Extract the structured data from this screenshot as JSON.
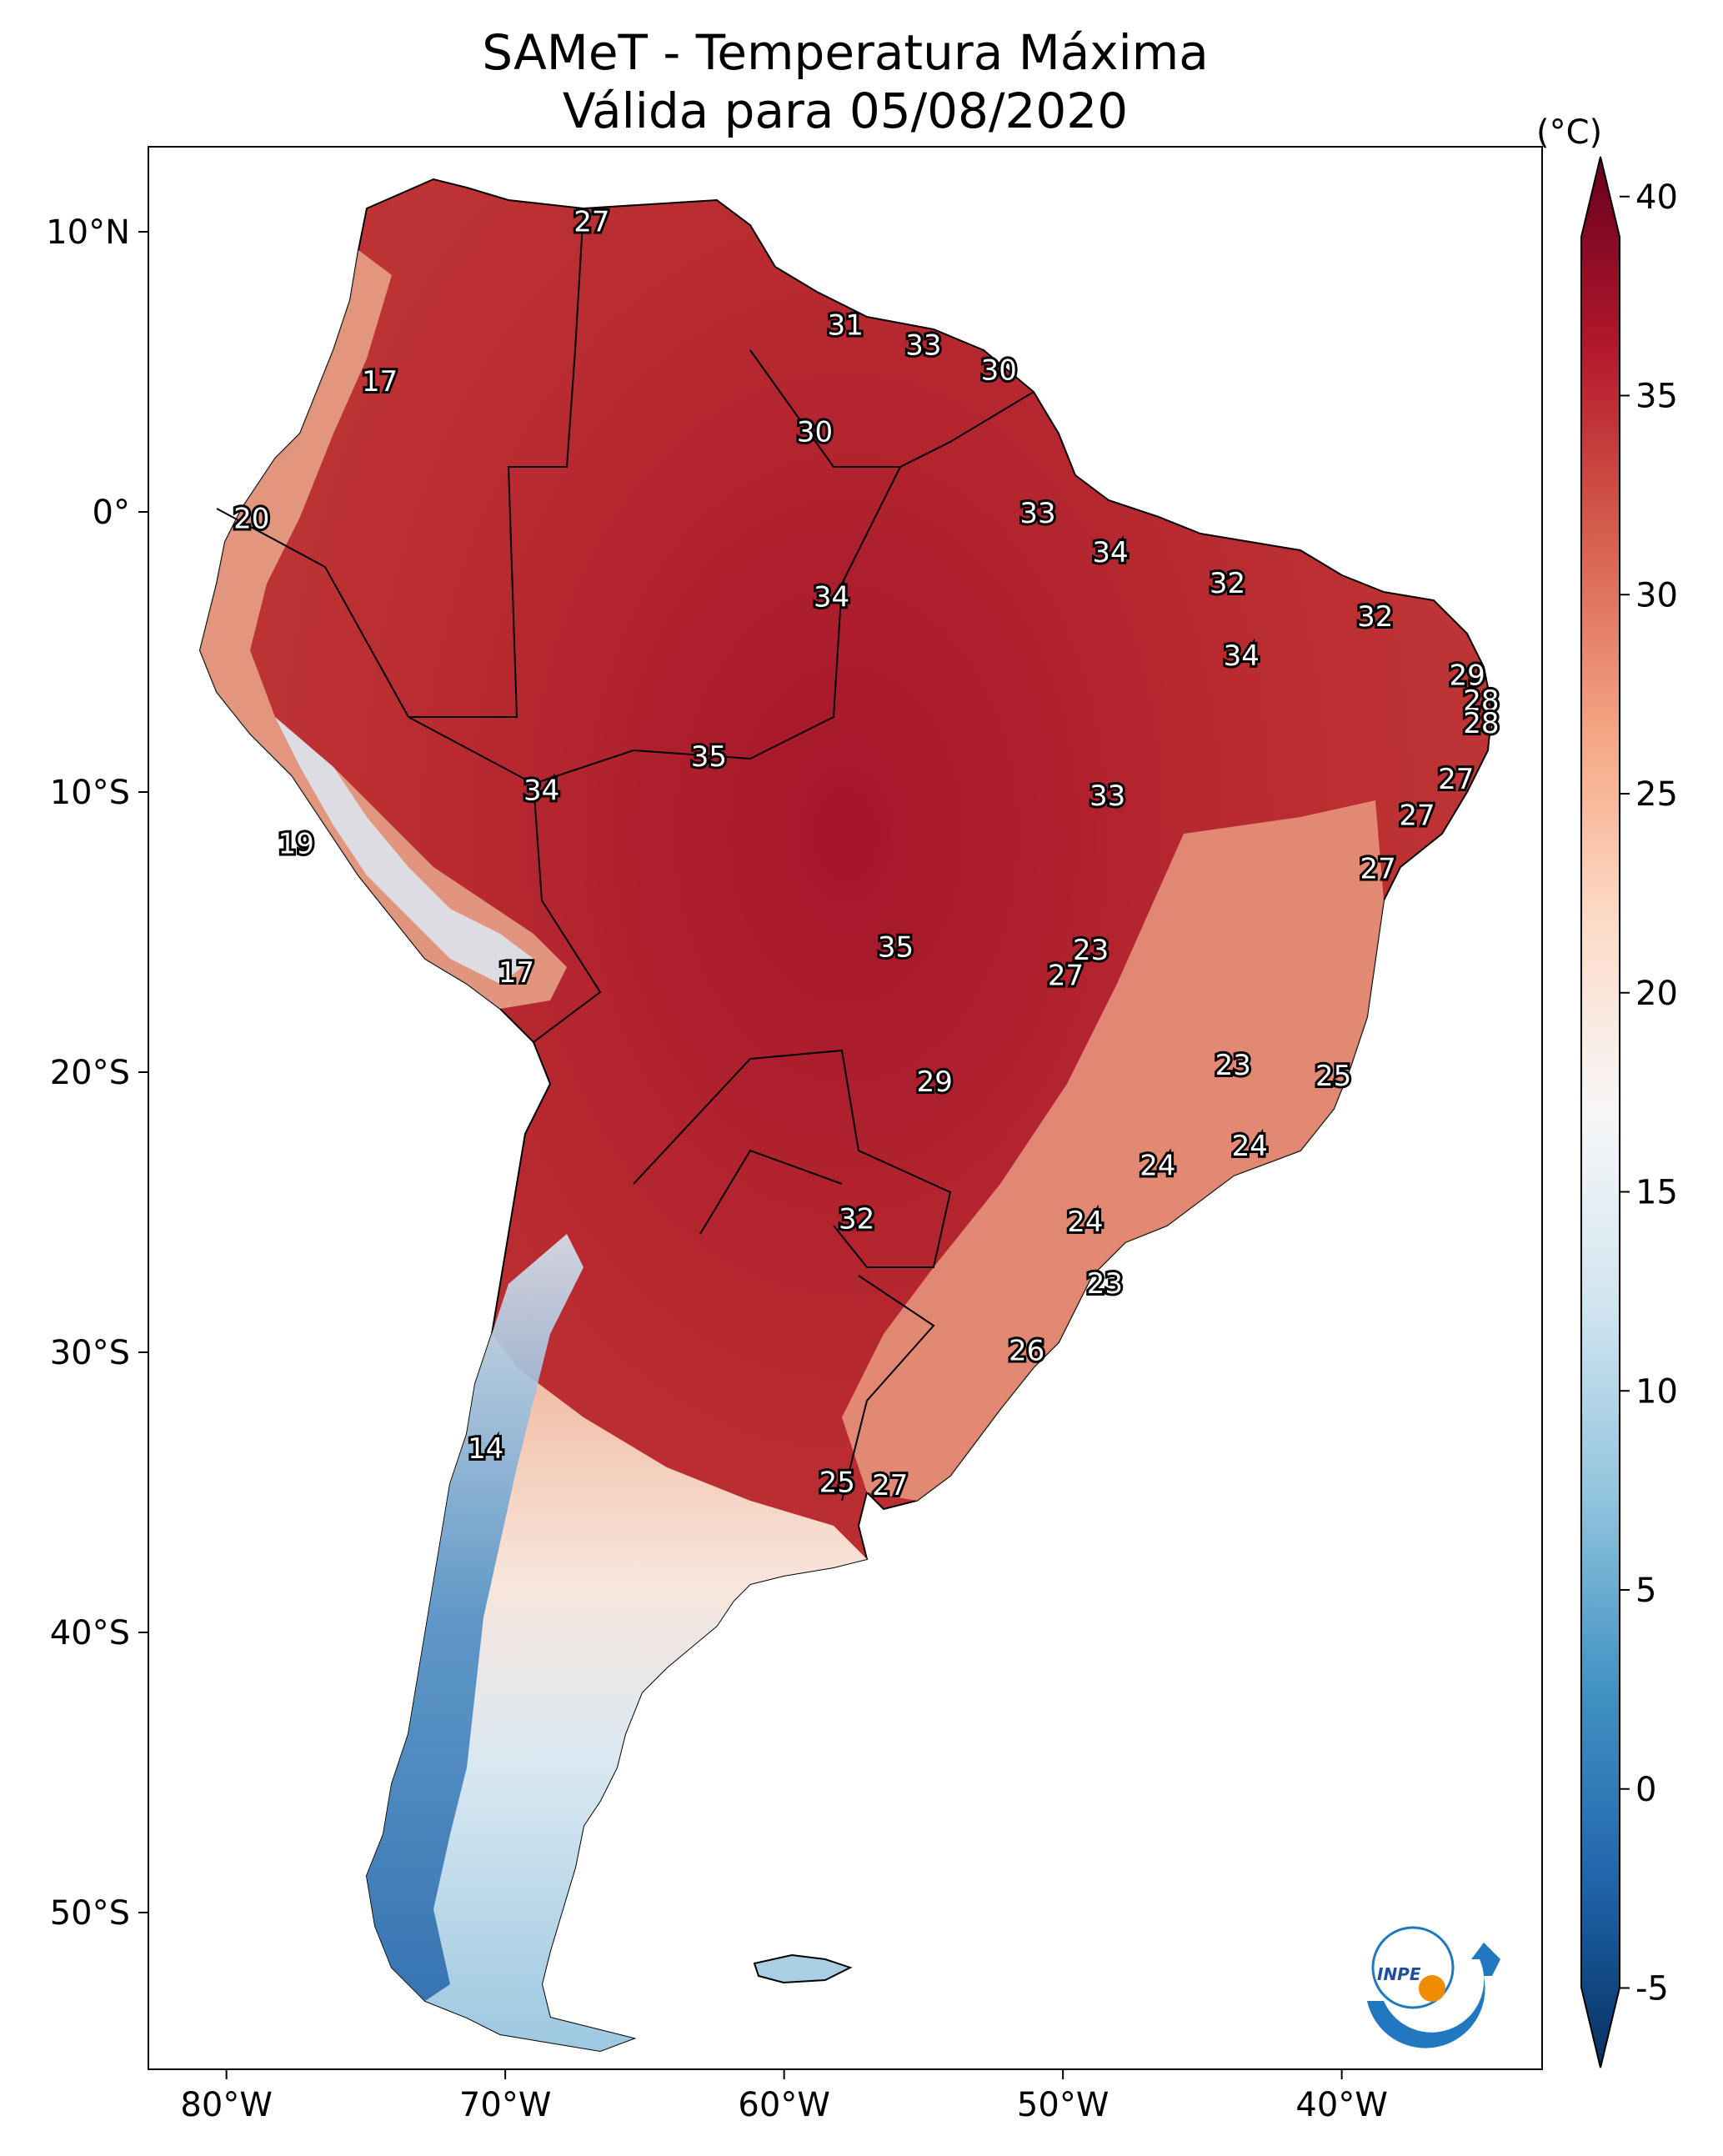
{
  "title": {
    "line1": "SAMeT - Temperatura Máxima",
    "line2": "Válida para 05/08/2020"
  },
  "axes": {
    "lat_labels": [
      "10°N",
      "0°",
      "10°S",
      "20°S",
      "30°S",
      "40°S",
      "50°S"
    ],
    "lon_labels": [
      "80°W",
      "70°W",
      "60°W",
      "50°W",
      "40°W"
    ]
  },
  "colorbar": {
    "unit": "(°C)",
    "min": -7,
    "max": 41,
    "ticks": [
      "40",
      "35",
      "30",
      "25",
      "20",
      "15",
      "10",
      "5",
      "0",
      "-5"
    ],
    "tick_values": [
      40,
      35,
      30,
      25,
      20,
      15,
      10,
      5,
      0,
      -5
    ],
    "colors": [
      "#053061",
      "#2166ac",
      "#4393c3",
      "#92c5de",
      "#d1e5f0",
      "#f7f7f7",
      "#fddbc7",
      "#f4a582",
      "#d6604d",
      "#b2182b",
      "#67001f"
    ]
  },
  "logo": {
    "text": "INPE",
    "icon": "inpe-logo-icon"
  },
  "map_data": {
    "type": "temperature-map",
    "region": "South America",
    "variable": "Temperatura Máxima",
    "labels": [
      {
        "value": "27",
        "lon": -66.9,
        "lat": 10.3
      },
      {
        "value": "31",
        "lon": -57.8,
        "lat": 6.6
      },
      {
        "value": "33",
        "lon": -55.0,
        "lat": 5.9
      },
      {
        "value": "30",
        "lon": -52.3,
        "lat": 5.0
      },
      {
        "value": "17",
        "lon": -74.5,
        "lat": 4.6
      },
      {
        "value": "30",
        "lon": -58.9,
        "lat": 2.8
      },
      {
        "value": "20",
        "lon": -79.1,
        "lat": -0.3
      },
      {
        "value": "33",
        "lon": -50.9,
        "lat": -0.1
      },
      {
        "value": "34",
        "lon": -48.3,
        "lat": -1.5
      },
      {
        "value": "32",
        "lon": -44.1,
        "lat": -2.6
      },
      {
        "value": "34",
        "lon": -58.3,
        "lat": -3.1
      },
      {
        "value": "32",
        "lon": -38.8,
        "lat": -3.8
      },
      {
        "value": "34",
        "lon": -43.6,
        "lat": -5.2
      },
      {
        "value": "29",
        "lon": -35.5,
        "lat": -5.9
      },
      {
        "value": "28",
        "lon": -35.0,
        "lat": -6.8
      },
      {
        "value": "28",
        "lon": -35.0,
        "lat": -7.6
      },
      {
        "value": "35",
        "lon": -62.7,
        "lat": -8.8
      },
      {
        "value": "27",
        "lon": -35.9,
        "lat": -9.6
      },
      {
        "value": "34",
        "lon": -68.7,
        "lat": -10.0
      },
      {
        "value": "33",
        "lon": -48.4,
        "lat": -10.2
      },
      {
        "value": "27",
        "lon": -37.3,
        "lat": -10.9
      },
      {
        "value": "19",
        "lon": -77.5,
        "lat": -11.9
      },
      {
        "value": "27",
        "lon": -38.7,
        "lat": -12.8
      },
      {
        "value": "35",
        "lon": -56.0,
        "lat": -15.6
      },
      {
        "value": "23",
        "lon": -49.0,
        "lat": -15.7
      },
      {
        "value": "27",
        "lon": -49.9,
        "lat": -16.6
      },
      {
        "value": "17",
        "lon": -69.6,
        "lat": -16.5
      },
      {
        "value": "23",
        "lon": -43.9,
        "lat": -19.8
      },
      {
        "value": "25",
        "lon": -40.3,
        "lat": -20.2
      },
      {
        "value": "29",
        "lon": -54.6,
        "lat": -20.4
      },
      {
        "value": "24",
        "lon": -43.3,
        "lat": -22.7
      },
      {
        "value": "24",
        "lon": -46.6,
        "lat": -23.4
      },
      {
        "value": "32",
        "lon": -57.4,
        "lat": -25.3
      },
      {
        "value": "24",
        "lon": -49.2,
        "lat": -25.4
      },
      {
        "value": "23",
        "lon": -48.5,
        "lat": -27.6
      },
      {
        "value": "26",
        "lon": -51.3,
        "lat": -30.0
      },
      {
        "value": "14",
        "lon": -70.7,
        "lat": -33.5
      },
      {
        "value": "25",
        "lon": -58.1,
        "lat": -34.7
      },
      {
        "value": "27",
        "lon": -56.2,
        "lat": -34.8
      }
    ]
  }
}
